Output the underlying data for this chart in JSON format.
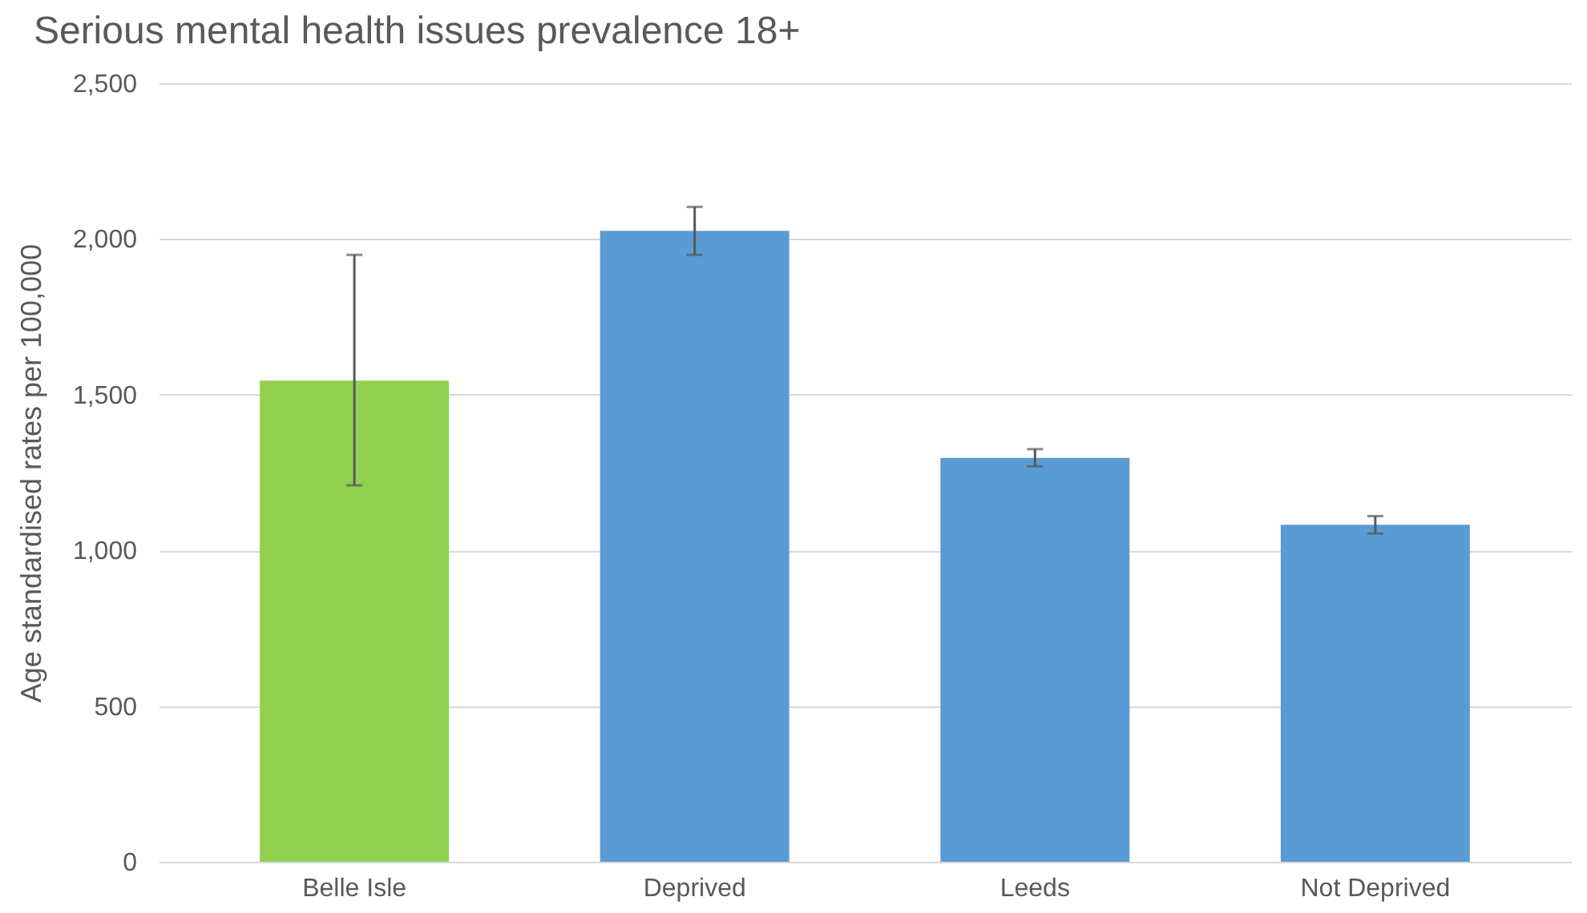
{
  "chart_data": {
    "type": "bar",
    "title": "Serious mental health issues prevalence 18+",
    "ylabel": "Age standardised rates per 100,000",
    "categories": [
      "Belle Isle",
      "Deprived",
      "Leeds",
      "Not Deprived"
    ],
    "values": [
      1545,
      2026,
      1297,
      1082
    ],
    "colors": [
      "#92d050",
      "#5b9bd5",
      "#5b9bd5",
      "#5b9bd5"
    ],
    "errors": [
      [
        1209,
        1949
      ],
      [
        1949,
        2103
      ],
      [
        1270,
        1325
      ],
      [
        1054,
        1110
      ]
    ],
    "ylim": [
      0,
      2500
    ],
    "yticks": [
      0,
      500,
      {
        "value": 1000,
        "label": "1,000"
      },
      {
        "value": 1500,
        "label": "1,500"
      },
      {
        "value": 2000,
        "label": "2,000"
      },
      {
        "value": 2500,
        "label": "2,500"
      }
    ],
    "grid": "y"
  }
}
